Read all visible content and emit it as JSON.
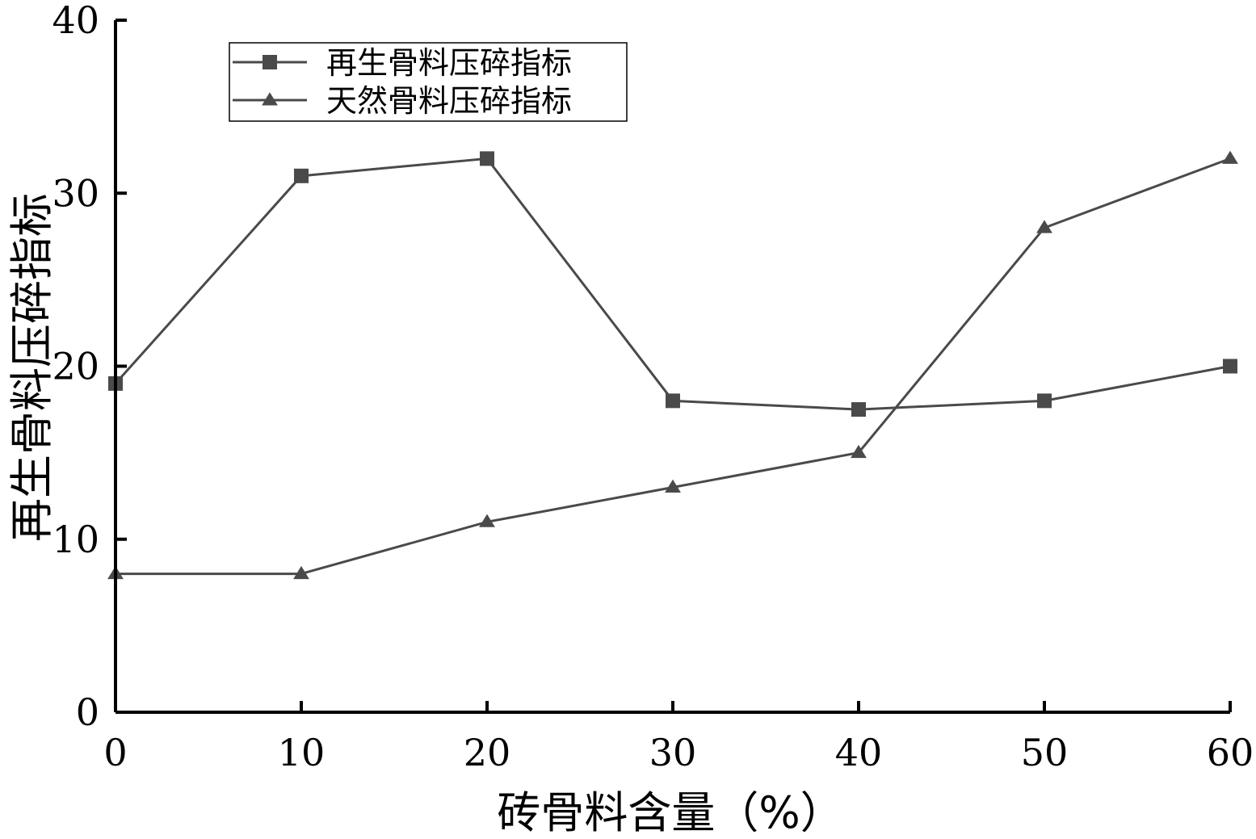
{
  "chart_data": {
    "type": "line",
    "title": "",
    "xlabel": "砖骨料含量（%）",
    "ylabel": "再生骨料压碎指标",
    "x": [
      0,
      10,
      20,
      30,
      40,
      50,
      60
    ],
    "xlim": [
      0,
      60
    ],
    "ylim": [
      0,
      40
    ],
    "x_ticks": [
      "0",
      "10",
      "20",
      "30",
      "40",
      "50",
      "60"
    ],
    "y_ticks": [
      "0",
      "10",
      "20",
      "30",
      "40"
    ],
    "grid": false,
    "legend_position": "top-left",
    "series": [
      {
        "name": "再生骨料压碎指标",
        "marker": "square",
        "color": "#4a4a4a",
        "values": [
          19,
          31,
          32,
          18,
          17.5,
          18,
          20
        ]
      },
      {
        "name": "天然骨料压碎指标",
        "marker": "triangle",
        "color": "#4a4a4a",
        "values": [
          8,
          8,
          11,
          13,
          15,
          28,
          32
        ]
      }
    ]
  }
}
